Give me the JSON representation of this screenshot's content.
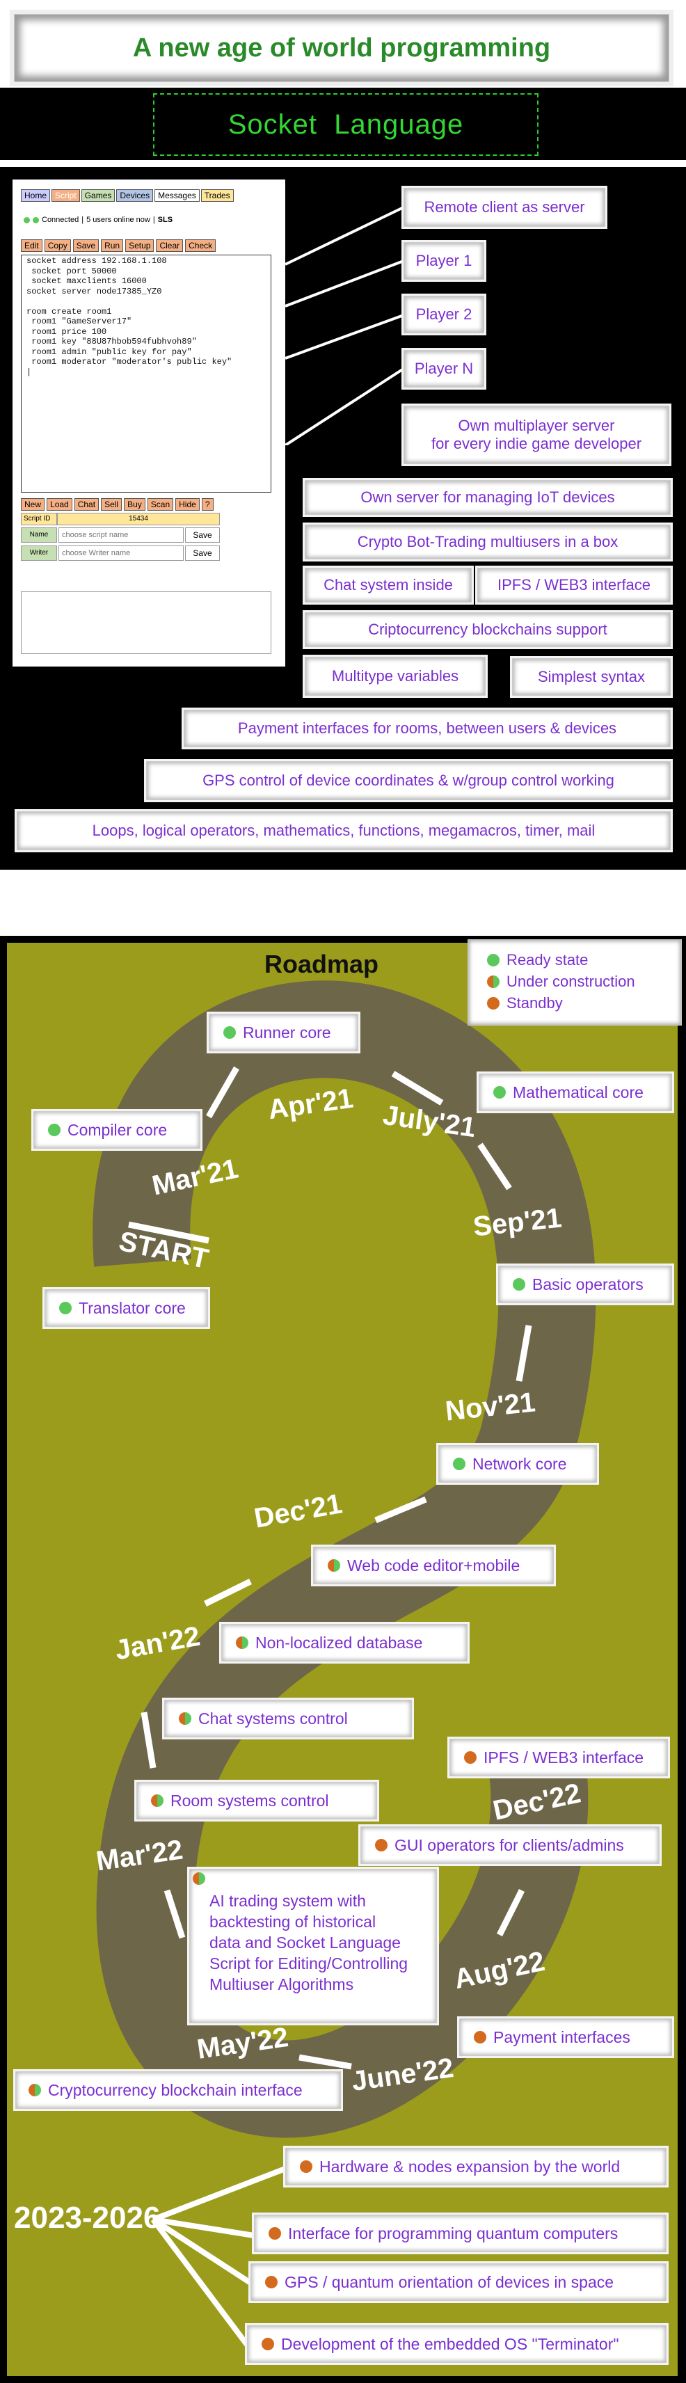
{
  "header": {
    "title": "A new age of world programming",
    "logo": "Socket  Language"
  },
  "client": {
    "nav": [
      "Home",
      "Script",
      "Games",
      "Devices",
      "Messages",
      "Trades"
    ],
    "status": {
      "connected": "Connected",
      "users": "5  users online now",
      "brand": "SLS"
    },
    "toolbar": [
      "Edit",
      "Copy",
      "Save",
      "Run",
      "Setup",
      "Clear",
      "Check"
    ],
    "code": "socket address 192.168.1.108\n socket port 50000\n socket maxclients 16000\nsocket server node17385_YZ0\n\nroom create room1\n room1 \"GameServer17\"\n room1 price 100\n room1 key \"88U87hbob594fubhvoh89\"\n room1 admin \"public key for pay\"\n room1 moderator \"moderator's public key\"\n|",
    "toolbar2": [
      "New",
      "Load",
      "Chat",
      "Sell",
      "Buy",
      "Scan",
      "Hide",
      "?"
    ],
    "script_id_label": "Script ID",
    "script_id": "15434",
    "name_label": "Name",
    "name_placeholder": "choose script name",
    "writer_label": "Writer",
    "writer_placeholder": "choose Writer name",
    "save": "Save"
  },
  "features": {
    "remote": "Remote client as server",
    "player1": "Player 1",
    "player2": "Player 2",
    "playerN": "Player N",
    "own_server": "Own multiplayer server\nfor every indie game developer",
    "iot": "Own server for managing IoT devices",
    "crypto_bot": "Crypto Bot-Trading multiusers in a box",
    "chat": "Chat system inside",
    "ipfs": "IPFS / WEB3 interface",
    "blockchains": "Criptocurrency blockchains support",
    "multitype": "Multitype variables",
    "syntax": "Simplest syntax",
    "payment": "Payment interfaces for rooms, between users & devices",
    "gps": "GPS control of device coordinates & w/group control working",
    "loops": "Loops, logical operators, mathematics, functions, megamacros, timer, mail"
  },
  "roadmap": {
    "title": "Roadmap",
    "legend": [
      "Ready state",
      "Under construction",
      "Standby"
    ],
    "dates": [
      "START",
      "Mar'21",
      "Apr'21",
      "July'21",
      "Sep'21",
      "Nov'21",
      "Dec'21",
      "Jan'22",
      "Mar'22",
      "May'22",
      "June'22",
      "Aug'22",
      "Dec'22",
      "2023-2026"
    ],
    "nodes": {
      "runner": "Runner core",
      "compiler": "Compiler core",
      "math": "Mathematical core",
      "translator": "Translator core",
      "basic": "Basic operators",
      "network": "Network core",
      "webeditor": "Web code editor+mobile",
      "database": "Non-localized database",
      "chatctrl": "Chat systems control",
      "ipfs": "IPFS / WEB3 interface",
      "room": "Room systems control",
      "gui": "GUI operators for clients/admins",
      "ai": "AI trading system with\nbacktesting of historical\ndata and Socket Language\nScript for Editing/Controlling\nMultiuser Algorithms",
      "payment": "Payment interfaces",
      "crypto": "Cryptocurrency blockchain interface",
      "hardware": "Hardware & nodes expansion by the world",
      "quantum": "Interface for programming quantum computers",
      "gpsq": "GPS / quantum orientation of devices in space",
      "os": "Development of the embedded OS \"Terminator\""
    }
  },
  "colors": {
    "title_green": "#2a8a2a",
    "logo_green": "#33d633",
    "feature_purple": "#7b2fd0",
    "road_olive": "#9c9c1c",
    "road_track": "#6e6648",
    "ready": "#5ac85a",
    "standby": "#d36a1e"
  }
}
